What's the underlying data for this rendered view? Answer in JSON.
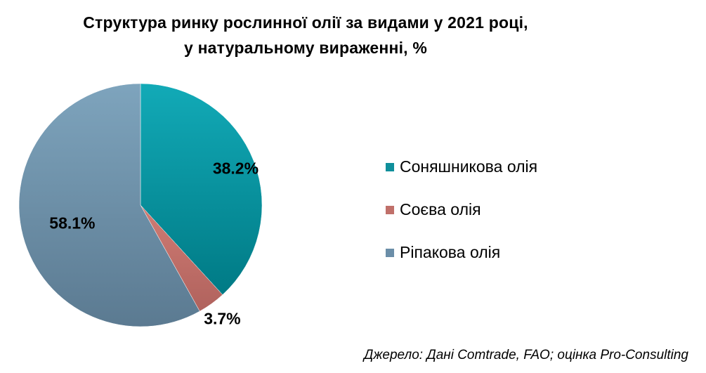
{
  "chart_data": {
    "type": "pie",
    "title": "Структура  ринку рослинної олії за видами у 2021 році,",
    "subtitle": "у натуральному вираженні, %",
    "slices": [
      {
        "label": "Соняшникова олія",
        "value": 38.2,
        "display": "38.2%",
        "color": "#0f8f9b"
      },
      {
        "label": "Соєва олія",
        "value": 3.7,
        "display": "3.7%",
        "color": "#c0706a"
      },
      {
        "label": "Ріпакова олія",
        "value": 58.1,
        "display": "58.1%",
        "color": "#6b8ea8"
      }
    ],
    "legend_position": "right"
  },
  "source": "Джерело: Дані Comtrade, FAO; оцінка Pro-Consulting"
}
